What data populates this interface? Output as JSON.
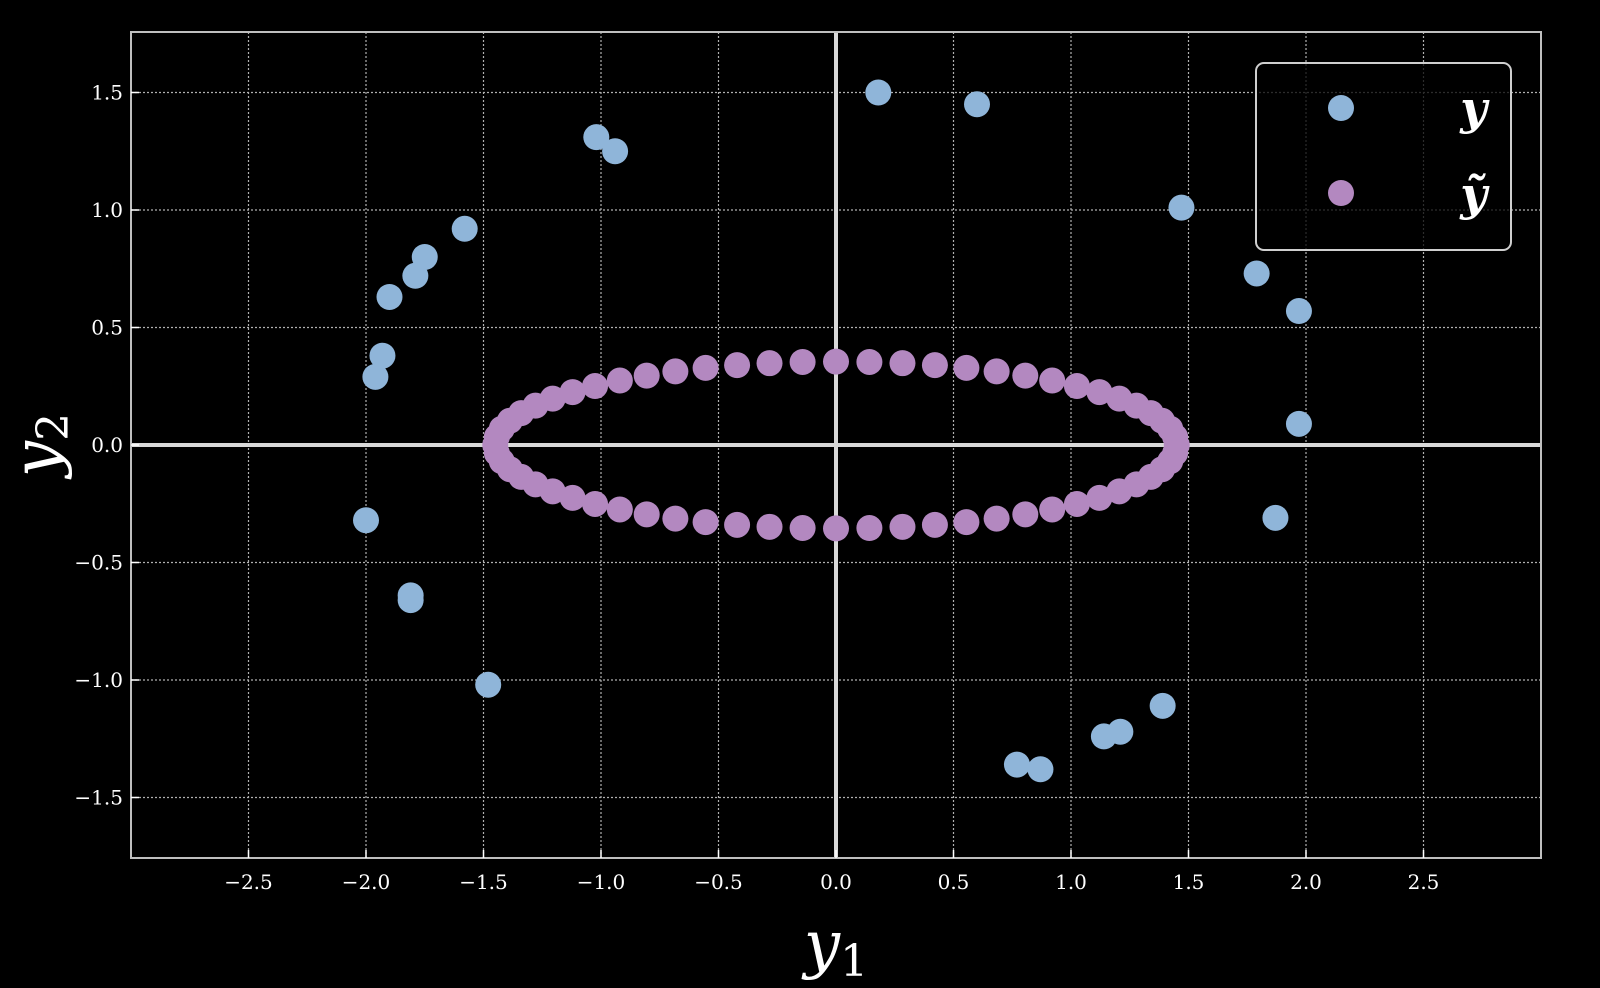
{
  "chart_data": {
    "type": "scatter",
    "xlabel": {
      "base": "y",
      "sub": "1"
    },
    "ylabel": {
      "base": "y",
      "sub": "2"
    },
    "xlim": [
      -2.5,
      2.5
    ],
    "ylim": [
      -1.5,
      1.5
    ],
    "x_ticks": [
      -2.5,
      -2.0,
      -1.5,
      -1.0,
      -0.5,
      0.0,
      0.5,
      1.0,
      1.5,
      2.0,
      2.5
    ],
    "y_ticks": [
      -1.5,
      -1.0,
      -0.5,
      0.0,
      0.5,
      1.0,
      1.5
    ],
    "x_tick_labels": [
      "−2.5",
      "−2.0",
      "−1.5",
      "−1.0",
      "−0.5",
      "0.0",
      "0.5",
      "1.0",
      "1.5",
      "2.0",
      "2.5"
    ],
    "y_tick_labels": [
      "−1.5",
      "−1.0",
      "−0.5",
      "0.0",
      "0.5",
      "1.0",
      "1.5"
    ],
    "grid": true,
    "legend_position": "top-right",
    "series": [
      {
        "name": "y",
        "color": "#8fb5d9",
        "points": [
          [
            0.18,
            1.5
          ],
          [
            0.6,
            1.45
          ],
          [
            -1.02,
            1.31
          ],
          [
            -0.94,
            1.25
          ],
          [
            1.47,
            1.01
          ],
          [
            -1.58,
            0.92
          ],
          [
            -1.75,
            0.8
          ],
          [
            -1.79,
            0.72
          ],
          [
            -1.9,
            0.63
          ],
          [
            1.79,
            0.73
          ],
          [
            1.97,
            0.57
          ],
          [
            -1.93,
            0.38
          ],
          [
            -1.96,
            0.29
          ],
          [
            1.97,
            0.09
          ],
          [
            -2.0,
            -0.32
          ],
          [
            1.87,
            -0.31
          ],
          [
            -1.81,
            -0.64
          ],
          [
            -1.81,
            -0.66
          ],
          [
            -1.48,
            -1.02
          ],
          [
            1.39,
            -1.11
          ],
          [
            1.21,
            -1.22
          ],
          [
            1.14,
            -1.24
          ],
          [
            0.77,
            -1.36
          ],
          [
            0.87,
            -1.38
          ]
        ]
      },
      {
        "name": "ỹ",
        "color": "#b388c0",
        "ellipse": {
          "rx": 1.45,
          "ry": 0.355,
          "count": 64
        }
      }
    ]
  }
}
